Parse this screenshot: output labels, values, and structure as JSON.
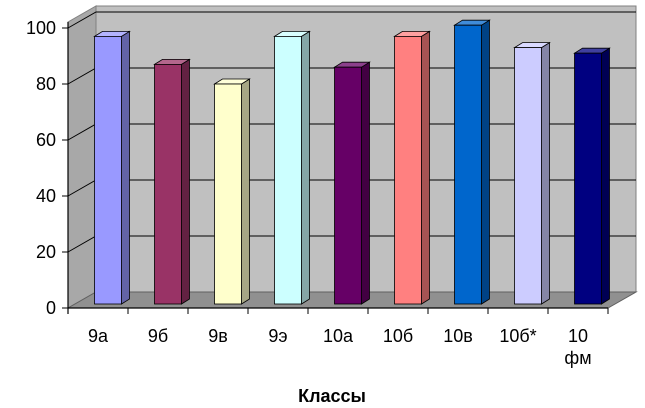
{
  "chart_data": {
    "type": "bar",
    "title": "",
    "xlabel": "Классы",
    "ylabel": "",
    "categories": [
      [
        "9а"
      ],
      [
        "9б"
      ],
      [
        "9в"
      ],
      [
        "9э"
      ],
      [
        "10а"
      ],
      [
        "10б"
      ],
      [
        "10в"
      ],
      [
        "10б*"
      ],
      [
        "10",
        "фм"
      ]
    ],
    "values": [
      97,
      87,
      80,
      97,
      86,
      97,
      101,
      93,
      91
    ],
    "colors": [
      "#9999ff",
      "#993366",
      "#ffffcc",
      "#ccffff",
      "#660066",
      "#ff8080",
      "#0066cc",
      "#ccccff",
      "#000080"
    ],
    "yticks": [
      0,
      20,
      40,
      60,
      80,
      100
    ],
    "ylim": [
      0,
      100
    ],
    "grid": true,
    "legend": "none",
    "style": "3d-column",
    "wall_color": "#c0c0c0"
  }
}
